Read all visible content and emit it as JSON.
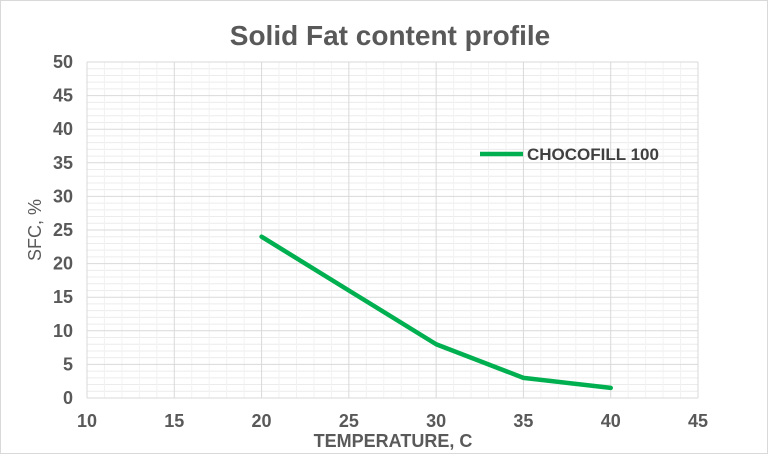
{
  "chart_data": {
    "type": "line",
    "title": "Solid Fat content profile",
    "xlabel": "TEMPERATURE, C",
    "ylabel": "SFC, %",
    "xlim": [
      10,
      45
    ],
    "ylim": [
      0,
      50
    ],
    "x_ticks": [
      "10",
      "15",
      "20",
      "25",
      "30",
      "35",
      "40",
      "45"
    ],
    "y_ticks": [
      "0",
      "5",
      "10",
      "15",
      "20",
      "25",
      "30",
      "35",
      "40",
      "45",
      "50"
    ],
    "grid": true,
    "legend_position": "right",
    "series": [
      {
        "name": "CHOCOFILL 100",
        "color": "#00b050",
        "x": [
          20,
          25,
          30,
          35,
          40
        ],
        "y": [
          24,
          16,
          8,
          3,
          1.5
        ]
      }
    ]
  }
}
